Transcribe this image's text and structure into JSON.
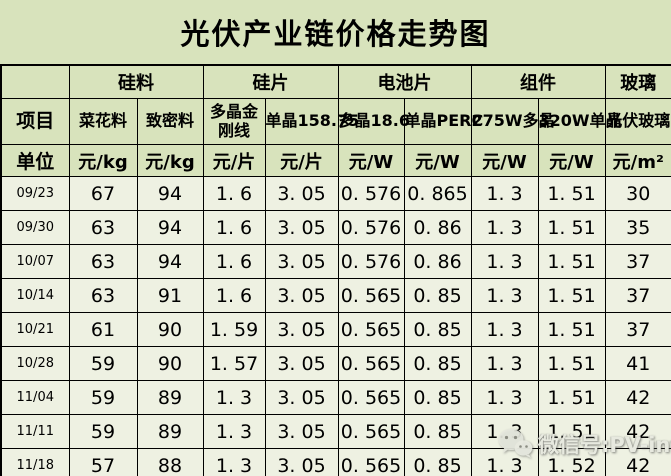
{
  "title": "光伏产业链价格走势图",
  "colors": {
    "header_bg": "#d8e3bc",
    "cell_bg": "#eef1e2",
    "border": "#000000",
    "text": "#000000",
    "watermark_text": "#e7e9df"
  },
  "table": {
    "corner_label": "项目",
    "unit_row_label": "单位",
    "groups": [
      {
        "label": "硅料",
        "span": 2
      },
      {
        "label": "硅片",
        "span": 2
      },
      {
        "label": "电池片",
        "span": 2
      },
      {
        "label": "组件",
        "span": 2
      },
      {
        "label": "玻璃",
        "span": 1
      }
    ],
    "columns": [
      "菜花料",
      "致密料",
      "多晶金刚线",
      "单晶158.75",
      "多晶18.6",
      "单晶PERC",
      "275W多晶",
      "320W单晶",
      "光伏玻璃"
    ],
    "units": [
      "元/kg",
      "元/kg",
      "元/片",
      "元/片",
      "元/W",
      "元/W",
      "元/W",
      "元/W",
      "元/m²"
    ],
    "rows": [
      {
        "date": "09/23",
        "values": [
          "67",
          "94",
          "1. 6",
          "3. 05",
          "0. 576",
          "0. 865",
          "1. 3",
          "1. 51",
          "30"
        ]
      },
      {
        "date": "09/30",
        "values": [
          "63",
          "94",
          "1. 6",
          "3. 05",
          "0. 576",
          "0. 86",
          "1. 3",
          "1. 51",
          "35"
        ]
      },
      {
        "date": "10/07",
        "values": [
          "63",
          "94",
          "1. 6",
          "3. 05",
          "0. 576",
          "0. 86",
          "1. 3",
          "1. 51",
          "37"
        ]
      },
      {
        "date": "10/14",
        "values": [
          "63",
          "91",
          "1. 6",
          "3. 05",
          "0. 565",
          "0. 85",
          "1. 3",
          "1. 51",
          "37"
        ]
      },
      {
        "date": "10/21",
        "values": [
          "61",
          "90",
          "1. 59",
          "3. 05",
          "0. 565",
          "0. 85",
          "1. 3",
          "1. 51",
          "37"
        ]
      },
      {
        "date": "10/28",
        "values": [
          "59",
          "90",
          "1. 57",
          "3. 05",
          "0. 565",
          "0. 85",
          "1. 3",
          "1. 51",
          "41"
        ]
      },
      {
        "date": "11/04",
        "values": [
          "59",
          "89",
          "1. 3",
          "3. 05",
          "0. 565",
          "0. 85",
          "1. 3",
          "1. 51",
          "42"
        ]
      },
      {
        "date": "11/11",
        "values": [
          "59",
          "89",
          "1. 3",
          "3. 05",
          "0. 565",
          "0. 85",
          "1. 3",
          "1. 51",
          "42"
        ]
      },
      {
        "date": "11/18",
        "values": [
          "57",
          "88",
          "1. 3",
          "3. 05",
          "0. 565",
          "0. 85",
          "1. 3",
          "1. 52",
          "42"
        ]
      }
    ]
  },
  "watermark": {
    "icon": "wechat-icon",
    "text": "微信号:PV-info"
  },
  "chart_data": {
    "type": "table",
    "title": "光伏产业链价格走势图",
    "column_groups": [
      "硅料",
      "硅料",
      "硅片",
      "硅片",
      "电池片",
      "电池片",
      "组件",
      "组件",
      "玻璃"
    ],
    "columns": [
      "菜花料",
      "致密料",
      "多晶金刚线",
      "单晶158.75",
      "多晶18.6",
      "单晶PERC",
      "275W多晶",
      "320W单晶",
      "光伏玻璃"
    ],
    "units": [
      "元/kg",
      "元/kg",
      "元/片",
      "元/片",
      "元/W",
      "元/W",
      "元/W",
      "元/W",
      "元/m²"
    ],
    "dates": [
      "09/23",
      "09/30",
      "10/07",
      "10/14",
      "10/21",
      "10/28",
      "11/04",
      "11/11",
      "11/18"
    ],
    "rows": [
      [
        67,
        94,
        1.6,
        3.05,
        0.576,
        0.865,
        1.3,
        1.51,
        30
      ],
      [
        63,
        94,
        1.6,
        3.05,
        0.576,
        0.86,
        1.3,
        1.51,
        35
      ],
      [
        63,
        94,
        1.6,
        3.05,
        0.576,
        0.86,
        1.3,
        1.51,
        37
      ],
      [
        63,
        91,
        1.6,
        3.05,
        0.565,
        0.85,
        1.3,
        1.51,
        37
      ],
      [
        61,
        90,
        1.59,
        3.05,
        0.565,
        0.85,
        1.3,
        1.51,
        37
      ],
      [
        59,
        90,
        1.57,
        3.05,
        0.565,
        0.85,
        1.3,
        1.51,
        41
      ],
      [
        59,
        89,
        1.3,
        3.05,
        0.565,
        0.85,
        1.3,
        1.51,
        42
      ],
      [
        59,
        89,
        1.3,
        3.05,
        0.565,
        0.85,
        1.3,
        1.51,
        42
      ],
      [
        57,
        88,
        1.3,
        3.05,
        0.565,
        0.85,
        1.3,
        1.52,
        42
      ]
    ]
  }
}
